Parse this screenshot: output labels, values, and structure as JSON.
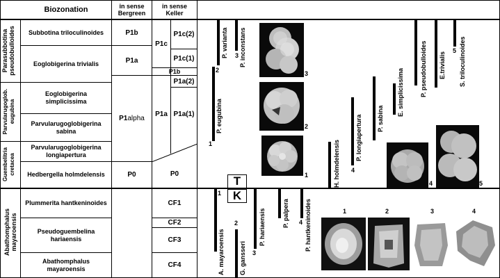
{
  "header": {
    "biozonation": "Biozonation",
    "bergreen": [
      "in sense",
      "Bergreen"
    ],
    "keller": [
      "in sense",
      "Keller"
    ]
  },
  "groups": {
    "parasubbotina": [
      "Parasubbotina",
      "pseudobulloides"
    ],
    "parvularugoglob": [
      "Parvularugoglob.",
      "eugubina"
    ],
    "guembelitria": [
      "Guembelitria",
      "cretacea"
    ],
    "abathomphalus": [
      "Abathomphalus",
      "mayaroensis"
    ]
  },
  "zones": {
    "subbotina": "Subbotina triloculinoides",
    "eoglobigerina_triv": "Eoglobigerina trivialis",
    "eoglobigerina_simp": [
      "Eoglobigerina",
      "simplicissima"
    ],
    "parv_sabina": [
      "Parvularugoglobigerina",
      "sabina"
    ],
    "parv_longi": [
      "Parvularugoglobigerina",
      "longiapertura"
    ],
    "hedbergella": "Hedbergella holmdelensis",
    "plummerita": "Plummerita hantkeninoides",
    "pseudoguembelina": [
      "Pseudoguembelina",
      "hariaensis"
    ],
    "abathomphalus": [
      "Abathomphalus",
      "mayaroensis"
    ]
  },
  "bergreen": {
    "p1b": "P1b",
    "p1a": "P1a",
    "p1alpha_main": "P1",
    "p1alpha_suffix": "alpha",
    "p0": "P0"
  },
  "keller": {
    "p1c": "P1c",
    "p1c2": "P1c(2)",
    "p1c1": "P1c(1)",
    "p1b": "P1b",
    "p1a": "P1a",
    "p1a2": "P1a(2)",
    "p1a1": "P1a(1)",
    "p0": "P0",
    "cf1": "CF1",
    "cf2": "CF2",
    "cf3": "CF3",
    "cf4": "CF4"
  },
  "boundary": {
    "t": "T",
    "k": "K"
  },
  "taxa": {
    "p_eugubina": "P. eugubina",
    "p_varianta": "P. varianta",
    "p_inconstans": "P. inconstans",
    "h_holmdelensis": "H. holmdelensis",
    "p_longiapertura": "P. longiapertura",
    "p_sabina": "P. sabina",
    "e_simplicissima": "E. simplicissima",
    "p_pseudobulloides": "P. pseudobulloides",
    "e_trivialis": "E.trivialis",
    "s_triloculinoides": "S. triloculinoides",
    "a_mayaroensis": "A. mayaroensis",
    "g_gansseri": "G. gansseri",
    "p_hariaensis": "P. hariaensis",
    "p_palpera": "P. palpera",
    "p_hantkeninoides": "P. hantkeninoides"
  },
  "numbers": {
    "n1": "1",
    "n2": "2",
    "n3": "3",
    "n4": "4",
    "n5": "5"
  }
}
